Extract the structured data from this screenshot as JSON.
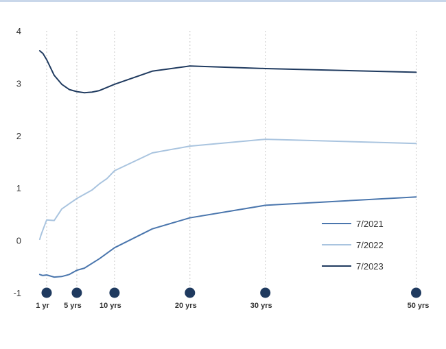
{
  "colors": {
    "top_rule": "#c9d7ea",
    "grid": "#c8c8c8",
    "marker": "#1f3a5f"
  },
  "chart_data": {
    "type": "line",
    "title": "",
    "xlabel": "",
    "ylabel": "",
    "xlim": [
      0,
      50.5
    ],
    "ylim": [
      -1,
      4
    ],
    "yticks": [
      -1,
      0,
      1,
      2,
      3,
      4
    ],
    "xticks": [
      {
        "value": 1,
        "label": "1 yr"
      },
      {
        "value": 5,
        "label": "5 yrs"
      },
      {
        "value": 10,
        "label": "10 yrs"
      },
      {
        "value": 20,
        "label": "20 yrs"
      },
      {
        "value": 30,
        "label": "30 yrs"
      },
      {
        "value": 50,
        "label": "50 yrs"
      }
    ],
    "grid": "vertical dotted at x ticks",
    "legend_position": "right",
    "series": [
      {
        "name": "7/2021",
        "color": "#4a76ad",
        "x": [
          0.08,
          0.25,
          0.5,
          1,
          2,
          3,
          4,
          5,
          6,
          8,
          10,
          15,
          20,
          30,
          50
        ],
        "y": [
          -0.65,
          -0.66,
          -0.67,
          -0.66,
          -0.7,
          -0.69,
          -0.65,
          -0.57,
          -0.53,
          -0.35,
          -0.14,
          0.22,
          0.43,
          0.67,
          0.83
        ]
      },
      {
        "name": "7/2022",
        "color": "#a9c4df",
        "x": [
          0.08,
          0.25,
          0.5,
          1,
          2,
          3,
          4,
          5,
          6,
          7,
          8,
          9,
          10,
          15,
          20,
          30,
          50
        ],
        "y": [
          0.02,
          0.1,
          0.2,
          0.39,
          0.38,
          0.6,
          0.7,
          0.8,
          0.88,
          0.96,
          1.08,
          1.18,
          1.33,
          1.67,
          1.8,
          1.93,
          1.85
        ]
      },
      {
        "name": "7/2023",
        "color": "#1f3a5f",
        "x": [
          0.08,
          0.25,
          0.5,
          1,
          2,
          3,
          4,
          5,
          6,
          7,
          8,
          10,
          15,
          20,
          30,
          50
        ],
        "y": [
          3.62,
          3.6,
          3.57,
          3.45,
          3.15,
          2.98,
          2.88,
          2.84,
          2.82,
          2.83,
          2.86,
          2.98,
          3.23,
          3.33,
          3.28,
          3.21
        ]
      }
    ]
  }
}
